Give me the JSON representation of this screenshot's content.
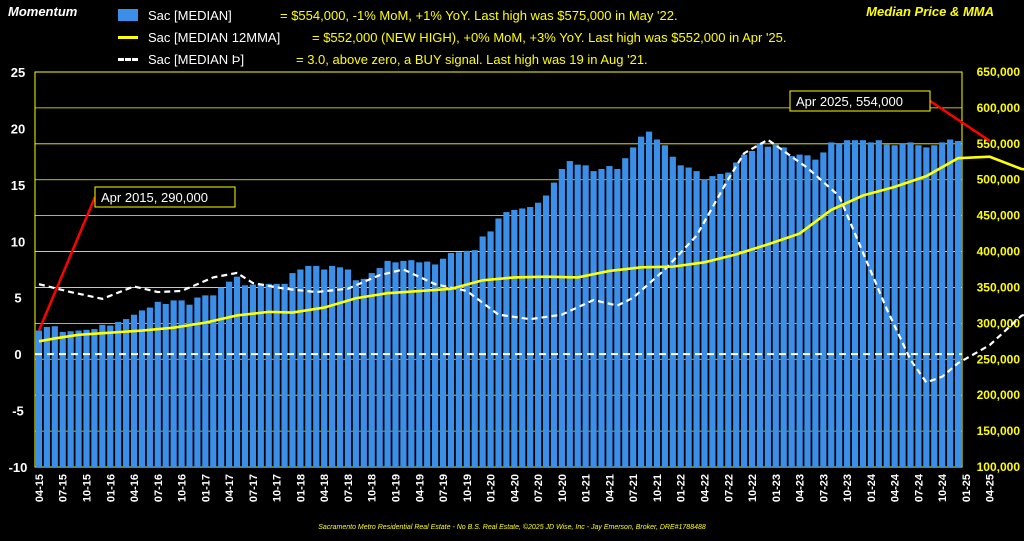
{
  "titles": {
    "left": "Momentum",
    "right": "Median Price & MMA"
  },
  "legend": [
    {
      "name": "Sac [MEDIAN]",
      "desc": "= $554,000, -1% MoM, +1% YoY. Last high was $575,000 in May '22."
    },
    {
      "name": "Sac [MEDIAN 12MMA]",
      "desc": "= $552,000 (NEW HIGH), +0% MoM, +3% YoY. Last high was $552,000 in Apr '25."
    },
    {
      "name": "Sac [MEDIAN Þ]",
      "desc": "= 3.0, above zero, a BUY signal. Last high was 19 in Aug '21."
    }
  ],
  "colors": {
    "background": "#000000",
    "bars": "#3b8fe8",
    "mma": "#ffff00",
    "momentum": "#ffffff",
    "grid": "#ffff00",
    "callout_line": "#ff0000",
    "text_accent": "#ffff00"
  },
  "callouts": [
    {
      "text": "Apr 2015,  290,000",
      "x": "04-15",
      "y": 290000
    },
    {
      "text": "Apr 2025,  554,000",
      "x": "04-25",
      "y": 554000
    }
  ],
  "footer": "Sacramento Metro Residential Real Estate - No B.S. Real Estate, ©2025 JD Wise, Inc - Jay Emerson, Broker, DRE#1788488",
  "chart_data": {
    "type": "bar",
    "x_ticks": [
      "04-15",
      "07-15",
      "10-15",
      "01-16",
      "04-16",
      "07-16",
      "10-16",
      "01-17",
      "04-17",
      "07-17",
      "10-17",
      "01-18",
      "04-18",
      "07-18",
      "10-18",
      "01-19",
      "04-19",
      "07-19",
      "10-19",
      "01-20",
      "04-20",
      "07-20",
      "10-20",
      "01-21",
      "04-21",
      "07-21",
      "10-21",
      "01-22",
      "04-22",
      "07-22",
      "10-22",
      "01-23",
      "04-23",
      "07-23",
      "10-23",
      "01-24",
      "04-24",
      "07-24",
      "10-24",
      "01-25",
      "04-25"
    ],
    "left_axis": {
      "min": -10,
      "max": 25,
      "ticks": [
        -10,
        -5,
        0,
        5,
        10,
        15,
        20,
        25
      ]
    },
    "right_axis": {
      "min": 100000,
      "max": 650000,
      "ticks": [
        "100,000",
        "150,000",
        "200,000",
        "250,000",
        "300,000",
        "350,000",
        "400,000",
        "450,000",
        "500,000",
        "550,000",
        "600,000",
        "650,000"
      ]
    },
    "series": [
      {
        "name": "Sac [MEDIAN]",
        "axis": "right",
        "style": "bar",
        "values": [
          290000,
          295000,
          296000,
          288000,
          289000,
          290000,
          291000,
          292000,
          298000,
          297000,
          302000,
          306000,
          312000,
          318000,
          322000,
          330000,
          327000,
          332000,
          332000,
          326000,
          336000,
          339000,
          339000,
          350000,
          358000,
          365000,
          353000,
          354000,
          355000,
          355000,
          355000,
          355000,
          370000,
          375000,
          380000,
          380000,
          375000,
          380000,
          378000,
          375000,
          360000,
          362000,
          370000,
          377000,
          387000,
          385000,
          387000,
          388000,
          385000,
          386000,
          382000,
          390000,
          398000,
          399000,
          401000,
          402000,
          421000,
          428000,
          446000,
          455000,
          458000,
          460000,
          462000,
          468000,
          478000,
          496000,
          515000,
          526000,
          521000,
          520000,
          512000,
          515000,
          519000,
          515000,
          530000,
          545000,
          560000,
          567000,
          556000,
          548000,
          532000,
          520000,
          517000,
          512000,
          500000,
          505000,
          508000,
          510000,
          524000,
          535000,
          540000,
          550000,
          546000,
          549000,
          545000,
          533000,
          535000,
          534000,
          528000,
          538000,
          552000,
          550000,
          555000,
          555000,
          555000,
          552000,
          555000,
          549000,
          548000,
          550000,
          552000,
          548000,
          545000,
          548000,
          552000,
          556000,
          554000
        ]
      },
      {
        "name": "Sac [MEDIAN 12MMA]",
        "axis": "right",
        "style": "line",
        "values": [
          [
            0,
            275000
          ],
          [
            2,
            279000
          ],
          [
            5,
            284000
          ],
          [
            9,
            287000
          ],
          [
            13,
            290000
          ],
          [
            17,
            294000
          ],
          [
            21,
            301000
          ],
          [
            25,
            311000
          ],
          [
            29,
            316000
          ],
          [
            32,
            315000
          ],
          [
            36,
            322000
          ],
          [
            40,
            335000
          ],
          [
            44,
            342000
          ],
          [
            48,
            345000
          ],
          [
            52,
            348000
          ],
          [
            56,
            360000
          ],
          [
            60,
            364000
          ],
          [
            64,
            365000
          ],
          [
            68,
            364000
          ],
          [
            72,
            373000
          ],
          [
            76,
            378000
          ],
          [
            80,
            379000
          ],
          [
            84,
            385000
          ],
          [
            88,
            396000
          ],
          [
            92,
            410000
          ],
          [
            96,
            425000
          ],
          [
            100,
            458000
          ],
          [
            104,
            478000
          ],
          [
            108,
            490000
          ],
          [
            112,
            505000
          ],
          [
            116,
            530000
          ],
          [
            120,
            532000
          ],
          [
            124,
            515000
          ],
          [
            128,
            510000
          ],
          [
            132,
            520000
          ],
          [
            136,
            530000
          ],
          [
            140,
            528000
          ],
          [
            144,
            540000
          ],
          [
            148,
            548000
          ],
          [
            152,
            548000
          ],
          [
            156,
            552000
          ]
        ]
      },
      {
        "name": "Sac [MEDIAN Þ]",
        "axis": "left",
        "style": "dashed-line",
        "values": [
          [
            0,
            6.2
          ],
          [
            4,
            5.5
          ],
          [
            8,
            4.9
          ],
          [
            12,
            6.0
          ],
          [
            15,
            5.5
          ],
          [
            18,
            5.6
          ],
          [
            22,
            6.8
          ],
          [
            25,
            7.2
          ],
          [
            27,
            6.3
          ],
          [
            31,
            5.8
          ],
          [
            35,
            5.5
          ],
          [
            39,
            5.8
          ],
          [
            43,
            7.0
          ],
          [
            46,
            7.5
          ],
          [
            50,
            6.2
          ],
          [
            54,
            5.6
          ],
          [
            58,
            3.5
          ],
          [
            62,
            3.1
          ],
          [
            66,
            3.5
          ],
          [
            70,
            4.8
          ],
          [
            73,
            4.3
          ],
          [
            75,
            5.0
          ],
          [
            79,
            7.5
          ],
          [
            83,
            10.5
          ],
          [
            87,
            15.5
          ],
          [
            89,
            17.8
          ],
          [
            92,
            19.0
          ],
          [
            95,
            17.5
          ],
          [
            97,
            16.5
          ],
          [
            101,
            14.0
          ],
          [
            104,
            9.0
          ],
          [
            107,
            4.0
          ],
          [
            110,
            -0.5
          ],
          [
            112,
            -2.5
          ],
          [
            114,
            -2.0
          ],
          [
            116,
            -0.8
          ],
          [
            120,
            0.8
          ],
          [
            124,
            3.4
          ],
          [
            128,
            4.5
          ],
          [
            131,
            4.3
          ],
          [
            135,
            3.5
          ],
          [
            139,
            3.2
          ],
          [
            143,
            3.0
          ],
          [
            146,
            3.8
          ],
          [
            149,
            3.5
          ],
          [
            152,
            3.0
          ]
        ]
      }
    ],
    "zero_line": {
      "axis": "left",
      "value": 0,
      "style": "dashed"
    },
    "grid": true
  }
}
